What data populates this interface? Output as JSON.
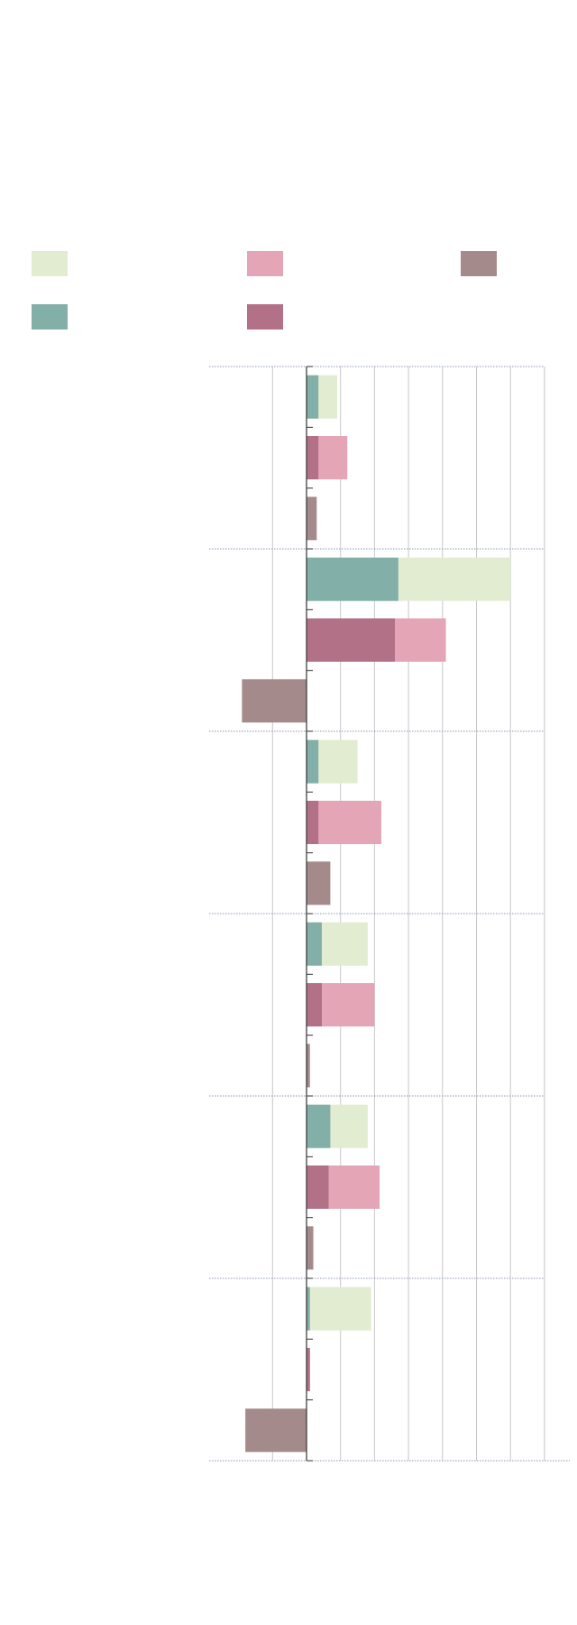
{
  "chart_data": {
    "type": "bar",
    "orientation": "horizontal",
    "grouped_and_overlaid": true,
    "legend_placement": "top",
    "grid": true,
    "xlim": [
      -20,
      70
    ],
    "categories": [
      "",
      "",
      "",
      "",
      "",
      ""
    ],
    "series": [
      {
        "role": "group1-total",
        "color": "#e2ecd1",
        "values": [
          9,
          60,
          15,
          18,
          18,
          19
        ]
      },
      {
        "role": "group2-total",
        "color": "#e4a6b7",
        "values": [
          12,
          41,
          22,
          20,
          21.5,
          1
        ]
      },
      {
        "role": "group3",
        "color": "#a58a8c",
        "values": [
          3,
          -19,
          7,
          1,
          2,
          -18
        ]
      },
      {
        "role": "group1-part",
        "color": "#82b0a9",
        "values": [
          3.5,
          27,
          3.5,
          4.5,
          7,
          1
        ]
      },
      {
        "role": "group2-part",
        "color": "#b27187",
        "values": [
          3.5,
          26,
          3.5,
          4.5,
          6.5,
          1
        ]
      }
    ]
  },
  "legend": [
    {
      "name": "",
      "color": "#e2ecd1"
    },
    {
      "name": "",
      "color": "#e4a6b7"
    },
    {
      "name": "",
      "color": "#a58a8c"
    },
    {
      "name": "",
      "color": "#82b0a9"
    },
    {
      "name": "",
      "color": "#b27187"
    }
  ],
  "title": ""
}
